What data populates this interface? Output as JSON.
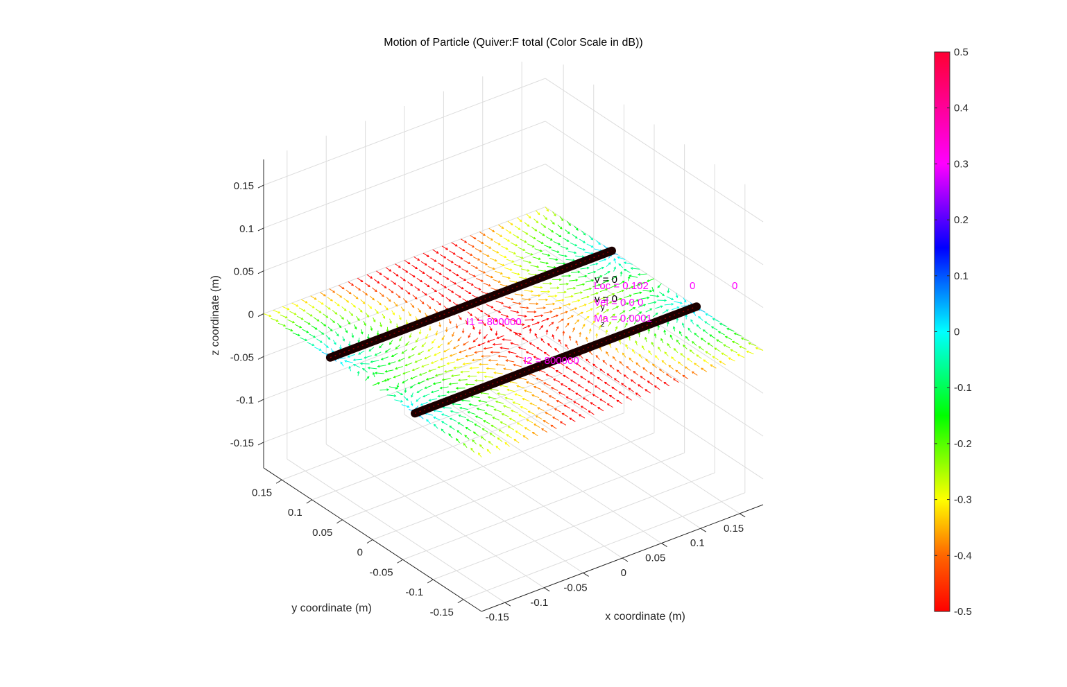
{
  "chart_data": {
    "type": "quiver3d",
    "title": "Motion of Particle (Quiver:F total (Color Scale in dB))",
    "xlabel": "x coordinate (m)",
    "ylabel": "y coordinate (m)",
    "zlabel": "z coordinate (m)",
    "xlim": [
      -0.18,
      0.18
    ],
    "ylim": [
      -0.18,
      0.18
    ],
    "zlim": [
      -0.18,
      0.18
    ],
    "xticks": [
      "-0.15",
      "-0.1",
      "-0.05",
      "0",
      "0.05",
      "0.1",
      "0.15"
    ],
    "yticks": [
      "-0.15",
      "-0.1",
      "-0.05",
      "0",
      "0.05",
      "0.1",
      "0.15"
    ],
    "zticks": [
      "-0.15",
      "-0.1",
      "-0.05",
      "0",
      "0.05",
      "0.1",
      "0.15"
    ],
    "grid": true,
    "colorbar": {
      "range": [
        -0.5,
        0.5
      ],
      "ticks": [
        "0.5",
        "0.4",
        "0.3",
        "0.2",
        "0.1",
        "0",
        "-0.1",
        "-0.2",
        "-0.3",
        "-0.4",
        "-0.5"
      ],
      "colormap": "hsv",
      "colors": [
        "#ff0000",
        "#ff6600",
        "#ffff00",
        "#00ff00",
        "#00ffff",
        "#0000ff",
        "#ff00ff",
        "#ff0000"
      ]
    },
    "rods": [
      {
        "label": "I1 = 800000",
        "x": [
          -0.18,
          0.18
        ],
        "y": 0.07,
        "z": 0
      },
      {
        "label": "I2 = 800000",
        "x": [
          -0.18,
          0.18
        ],
        "y": -0.07,
        "z": 0
      }
    ],
    "particle": {
      "loc_text": "Loc = 0.102",
      "loc_y": "0",
      "loc_z": "0",
      "vel_text": "Vel = 0  0  0",
      "mass_text": "Ma = 0.0001",
      "vx_text": "v  = 0",
      "vy_text": "v  = 0",
      "vz_sub": "z",
      "vy_sub": "y"
    },
    "field_plane": "z = 0, vectors colored by total force (dB)"
  }
}
